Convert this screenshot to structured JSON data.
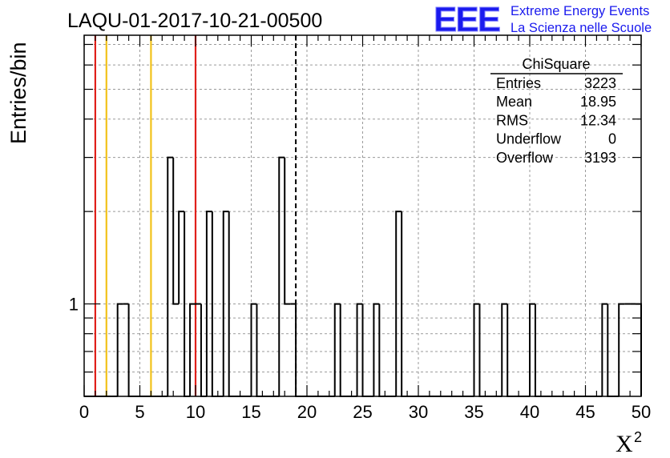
{
  "chart_data": {
    "type": "bar",
    "title": "LAQU-01-2017-10-21-00500",
    "xlabel": "X",
    "xlabel_superscript": "2",
    "ylabel": "Entries/bin",
    "xlim": [
      0,
      50
    ],
    "ylog": true,
    "ylim": [
      0.5,
      7.5
    ],
    "x_ticks": [
      "0",
      "5",
      "10",
      "15",
      "20",
      "25",
      "30",
      "35",
      "40",
      "45",
      "50"
    ],
    "y_ticks": [
      "1"
    ],
    "grid": true,
    "bin_width": 0.5,
    "bins": [
      [
        3.0,
        1
      ],
      [
        3.5,
        1
      ],
      [
        7.5,
        3
      ],
      [
        8.0,
        1
      ],
      [
        8.5,
        2
      ],
      [
        9.5,
        1
      ],
      [
        10.0,
        1
      ],
      [
        11.0,
        2
      ],
      [
        12.5,
        2
      ],
      [
        15.0,
        1
      ],
      [
        17.5,
        3
      ],
      [
        18.0,
        1
      ],
      [
        18.5,
        1
      ],
      [
        22.5,
        1
      ],
      [
        24.5,
        1
      ],
      [
        26.0,
        1
      ],
      [
        28.0,
        2
      ],
      [
        35.0,
        1
      ],
      [
        37.5,
        1
      ],
      [
        40.0,
        1
      ],
      [
        46.5,
        1
      ],
      [
        48.0,
        1
      ],
      [
        48.5,
        1
      ],
      [
        49.0,
        1
      ],
      [
        49.5,
        1
      ]
    ],
    "vertical_lines": [
      {
        "x": 1,
        "color": "#e0201b",
        "style": "solid"
      },
      {
        "x": 2,
        "color": "#f2c21a",
        "style": "solid"
      },
      {
        "x": 6,
        "color": "#f2c21a",
        "style": "solid"
      },
      {
        "x": 10,
        "color": "#e0201b",
        "style": "solid"
      },
      {
        "x": 19,
        "color": "#000000",
        "style": "dashed"
      }
    ],
    "stats": {
      "title": "ChiSquare",
      "rows": [
        {
          "label": "Entries",
          "value": "3223"
        },
        {
          "label": "Mean",
          "value": "18.95"
        },
        {
          "label": "RMS",
          "value": "12.34"
        },
        {
          "label": "Underflow",
          "value": "0"
        },
        {
          "label": "Overflow",
          "value": "3193"
        }
      ]
    }
  },
  "logo": {
    "mark": "EEE",
    "line1": "Extreme Energy Events",
    "line2": "La Scienza nelle Scuole",
    "color": "#1a1aee"
  }
}
